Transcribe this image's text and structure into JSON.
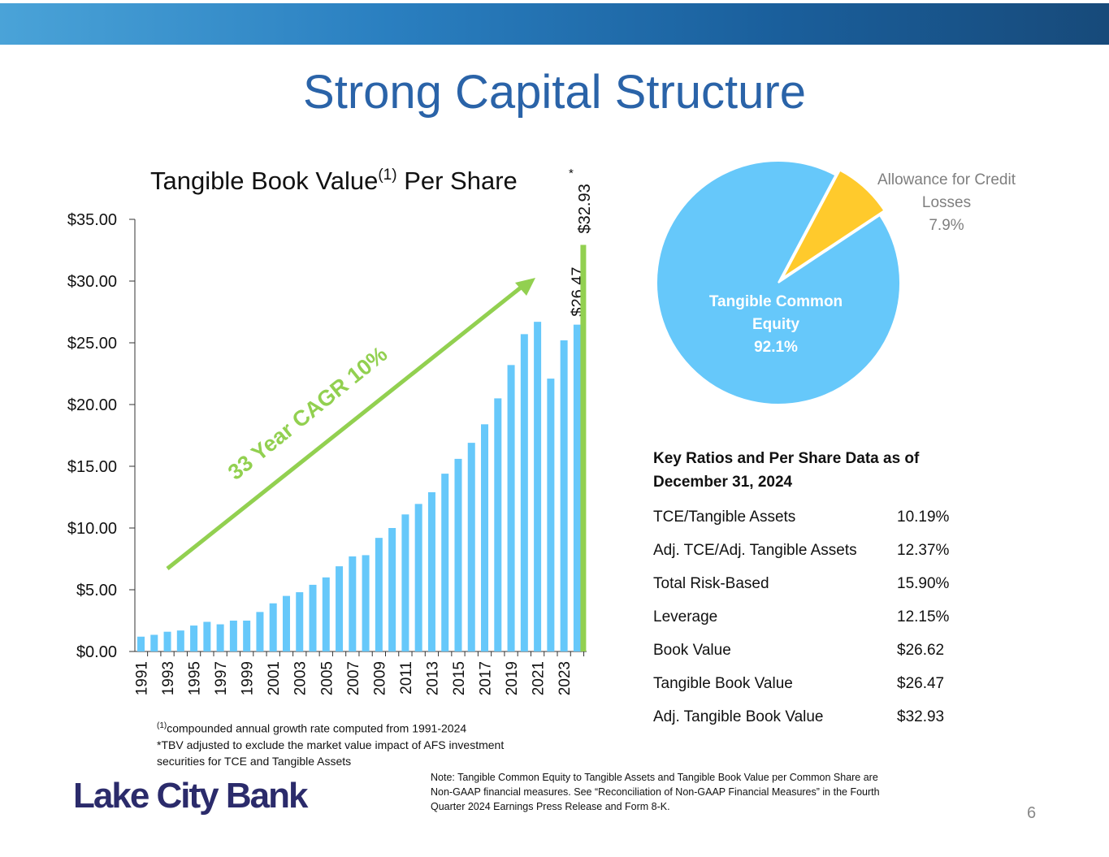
{
  "title": "Strong Capital Structure",
  "chart_data": [
    {
      "type": "bar",
      "title_parts": [
        "Tangible Book Value",
        "(1)",
        " Per Share"
      ],
      "categories": [
        "1991",
        null,
        "1993",
        null,
        "1995",
        null,
        "1997",
        null,
        "1999",
        null,
        "2001",
        null,
        "2003",
        null,
        "2005",
        null,
        "2007",
        null,
        "2009",
        null,
        "2011",
        null,
        "2013",
        null,
        "2015",
        null,
        "2017",
        null,
        "2019",
        null,
        "2021",
        null,
        "2023",
        null
      ],
      "values": [
        1.2,
        1.35,
        1.6,
        1.7,
        2.1,
        2.4,
        2.2,
        2.5,
        2.5,
        3.2,
        3.9,
        4.5,
        4.8,
        5.4,
        6.0,
        6.9,
        7.7,
        7.8,
        9.2,
        10.0,
        11.1,
        11.95,
        12.9,
        14.4,
        15.6,
        16.9,
        18.4,
        20.5,
        23.2,
        25.7,
        26.7,
        22.1,
        25.2,
        26.47
      ],
      "value_labels": [
        null,
        null,
        null,
        null,
        null,
        null,
        null,
        null,
        null,
        null,
        null,
        null,
        null,
        null,
        null,
        null,
        null,
        null,
        null,
        null,
        null,
        null,
        null,
        null,
        null,
        null,
        null,
        null,
        null,
        null,
        null,
        null,
        null,
        "$26.47"
      ],
      "color": "#66c8fa",
      "adjusted": {
        "value": 32.93,
        "label": "$32.93",
        "note": "*",
        "color": "#92d050"
      },
      "annotation": "33 Year CAGR 10%",
      "annotation_color": "#92d050",
      "ylim": [
        0,
        35
      ],
      "yticks": [
        {
          "value": 0,
          "label": "$0.00"
        },
        {
          "value": 5,
          "label": "$5.00"
        },
        {
          "value": 10,
          "label": "$10.00"
        },
        {
          "value": 15,
          "label": "$15.00"
        },
        {
          "value": 20,
          "label": "$20.00"
        },
        {
          "value": 25,
          "label": "$25.00"
        },
        {
          "value": 30,
          "label": "$30.00"
        },
        {
          "value": 35,
          "label": "$35.00"
        }
      ],
      "footnotes": [
        "(1)",
        "compounded annual growth rate computed from 1991-2024",
        "*TBV adjusted to exclude the market value impact of AFS investment securities for TCE and Tangible Assets"
      ]
    },
    {
      "type": "pie",
      "categories": [
        "Tangible Common Equity",
        "Allowance for Credit Losses"
      ],
      "values": [
        92.1,
        7.9
      ],
      "value_labels": [
        "92.1%",
        "7.9%"
      ],
      "colors": [
        "#66c8fa",
        "#ffca2c"
      ]
    }
  ],
  "table": {
    "heading": "Key Ratios and Per Share Data as of December 31, 2024",
    "rows": [
      [
        "TCE/Tangible Assets",
        "10.19%"
      ],
      [
        "Adj. TCE/Adj. Tangible Assets",
        "12.37%"
      ],
      [
        "Total Risk-Based",
        "15.90%"
      ],
      [
        "Leverage",
        "12.15%"
      ],
      [
        "Book Value",
        "$26.62"
      ],
      [
        "Tangible Book Value",
        "$26.47"
      ],
      [
        "Adj. Tangible Book Value",
        "$32.93"
      ]
    ]
  },
  "note": "Note: Tangible Common Equity to Tangible Assets and Tangible Book Value per Common Share are Non-GAAP financial measures. See “Reconciliation of Non-GAAP Financial Measures” in the Fourth Quarter 2024 Earnings Press Release and Form 8-K.",
  "logo": "Lake City Bank",
  "page_number": "6"
}
